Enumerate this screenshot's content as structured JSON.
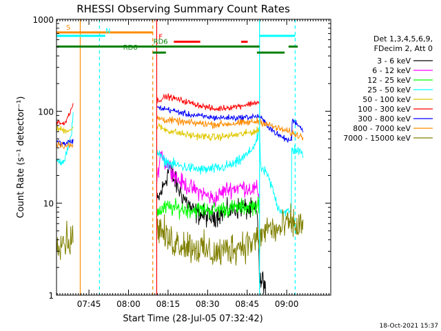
{
  "chart_data": {
    "type": "line",
    "title": "RHESSI Observing Summary Count Rates",
    "xlabel": "Start Time (28-Jul-05 07:32:42)",
    "ylabel": "Count Rate (s⁻¹ detector⁻¹)",
    "footer": "18-Oct-2021 15:37",
    "y_scale": "log",
    "ylim": [
      1,
      1000
    ],
    "xlim_min": [
      0,
      104
    ],
    "y_ticks": [
      {
        "value": 1,
        "label": "1"
      },
      {
        "value": 10,
        "label": "10"
      },
      {
        "value": 100,
        "label": "100"
      },
      {
        "value": 1000,
        "label": "1000"
      }
    ],
    "x_ticks": [
      {
        "value": 12.3,
        "label": "07:45"
      },
      {
        "value": 27.3,
        "label": "08:00"
      },
      {
        "value": 42.3,
        "label": "08:15"
      },
      {
        "value": 57.3,
        "label": "08:30"
      },
      {
        "value": 72.3,
        "label": "08:45"
      },
      {
        "value": 87.3,
        "label": "09:00"
      }
    ],
    "legend": {
      "placement": "right",
      "header": [
        "Det 1,3,4,5,6,9,",
        "FDecim 2, Att 0"
      ],
      "entries": [
        {
          "label": "3 - 6 keV",
          "color": "#000000"
        },
        {
          "label": "6 - 12 keV",
          "color": "#ff00ff"
        },
        {
          "label": "12 - 25 keV",
          "color": "#00ff00"
        },
        {
          "label": "25 - 50 keV",
          "color": "#00ffff"
        },
        {
          "label": "50 - 100 keV",
          "color": "#e0c800"
        },
        {
          "label": "100 - 300 keV",
          "color": "#ff0000"
        },
        {
          "label": "300 - 800 keV",
          "color": "#0000ff"
        },
        {
          "label": "800 - 7000 keV",
          "color": "#ff8c00"
        },
        {
          "label": "7000 - 15000 keV",
          "color": "#808000"
        }
      ]
    },
    "bars": [
      {
        "label": "S",
        "color": "#ff8c00",
        "y": 720,
        "segments": [
          [
            0,
            36.5
          ]
        ],
        "label_x": 4.5
      },
      {
        "label": "N",
        "color": "#00ffff",
        "y": 660,
        "segments": [
          [
            0,
            18.5
          ],
          [
            77,
            90.5
          ]
        ],
        "label_x": 19.5
      },
      {
        "label": "F",
        "color": "#ff0000",
        "y": 570,
        "segments": [
          [
            44.5,
            54.5
          ],
          [
            70,
            72.5
          ]
        ],
        "label_x": 39.5
      },
      {
        "label": "RD6",
        "color": "#008000",
        "y": 505,
        "segments": [
          [
            0,
            77
          ],
          [
            88,
            91.5
          ]
        ],
        "label_x": 39.5
      },
      {
        "label": "RD6",
        "color": "#008000",
        "y": 435,
        "segments": [
          [
            36.5,
            41.5
          ],
          [
            76,
            86.5
          ]
        ],
        "label_x": 28
      }
    ],
    "vlines": [
      {
        "x": 9.0,
        "color": "#ff8c00",
        "style": "solid"
      },
      {
        "x": 16.3,
        "color": "#00ffff",
        "style": "dashed"
      },
      {
        "x": 36.5,
        "color": "#ff8c00",
        "style": "dashed"
      },
      {
        "x": 38.0,
        "color": "#ff0000",
        "style": "solid"
      },
      {
        "x": 77.0,
        "color": "#00ffff",
        "style": "solid"
      },
      {
        "x": 90.5,
        "color": "#00ffff",
        "style": "dashed"
      }
    ],
    "segments": [
      [
        0,
        6.3
      ],
      [
        38,
        77
      ],
      [
        77,
        89.2
      ],
      [
        89.2,
        93.5
      ]
    ],
    "series": [
      {
        "name": "3 - 6 keV",
        "color": "#000000",
        "noise": 0.09,
        "points": [
          [
            38,
            10
          ],
          [
            40.5,
            15
          ],
          [
            43,
            25
          ],
          [
            44.5,
            18
          ],
          [
            47,
            13
          ],
          [
            52,
            8
          ],
          [
            58,
            7
          ],
          [
            64,
            8
          ],
          [
            70,
            9
          ],
          [
            76,
            8
          ],
          [
            76.8,
            3
          ],
          [
            77,
            1.3
          ],
          [
            78.5,
            1.5
          ],
          [
            79.5,
            1
          ]
        ]
      },
      {
        "name": "6 - 12 keV",
        "color": "#ff00ff",
        "noise": 0.07,
        "points": [
          [
            38,
            14
          ],
          [
            39.5,
            40
          ],
          [
            41,
            28
          ],
          [
            43,
            25
          ],
          [
            46,
            18
          ],
          [
            50,
            15
          ],
          [
            55,
            13
          ],
          [
            60,
            11
          ],
          [
            64,
            14
          ],
          [
            70,
            15
          ],
          [
            76,
            14
          ],
          [
            77,
            12
          ]
        ]
      },
      {
        "name": "12 - 25 keV",
        "color": "#00ff00",
        "noise": 0.07,
        "points": [
          [
            38,
            8
          ],
          [
            42,
            9
          ],
          [
            50,
            8.5
          ],
          [
            60,
            8.5
          ],
          [
            70,
            9
          ],
          [
            77,
            9.5
          ]
        ]
      },
      {
        "name": "25 - 50 keV",
        "color": "#00ffff",
        "noise": 0.045,
        "points": [
          [
            0,
            28
          ],
          [
            3,
            30
          ],
          [
            5.5,
            50
          ],
          [
            6.3,
            100
          ],
          [
            38,
            38
          ],
          [
            40,
            30
          ],
          [
            43,
            27
          ],
          [
            48,
            25
          ],
          [
            55,
            23
          ],
          [
            62,
            24
          ],
          [
            68,
            27
          ],
          [
            73,
            35
          ],
          [
            76,
            48
          ],
          [
            77,
            65
          ],
          [
            77.3,
            25
          ],
          [
            80,
            20
          ],
          [
            82,
            14
          ],
          [
            84,
            9
          ],
          [
            86,
            8
          ],
          [
            89,
            8
          ],
          [
            89.2,
            38
          ],
          [
            91,
            38
          ],
          [
            93.5,
            33
          ]
        ]
      },
      {
        "name": "50 - 100 keV",
        "color": "#e0c800",
        "noise": 0.03,
        "points": [
          [
            0,
            65
          ],
          [
            3,
            62
          ],
          [
            6.3,
            64
          ],
          [
            38,
            70
          ],
          [
            42,
            62
          ],
          [
            50,
            55
          ],
          [
            60,
            52
          ],
          [
            70,
            56
          ],
          [
            77,
            62
          ]
        ]
      },
      {
        "name": "100 - 300 keV",
        "color": "#ff0000",
        "noise": 0.025,
        "points": [
          [
            0,
            78
          ],
          [
            3,
            72
          ],
          [
            6.3,
            120
          ],
          [
            38,
            130
          ],
          [
            42,
            145
          ],
          [
            50,
            125
          ],
          [
            60,
            105
          ],
          [
            70,
            115
          ],
          [
            76,
            125
          ],
          [
            77,
            125
          ]
        ]
      },
      {
        "name": "300 - 800 keV",
        "color": "#0000ff",
        "noise": 0.025,
        "points": [
          [
            0,
            46
          ],
          [
            3,
            44
          ],
          [
            6.3,
            48
          ],
          [
            38,
            110
          ],
          [
            42,
            105
          ],
          [
            50,
            92
          ],
          [
            60,
            85
          ],
          [
            70,
            85
          ],
          [
            76,
            88
          ],
          [
            77,
            88
          ],
          [
            80,
            70
          ],
          [
            84,
            55
          ],
          [
            88,
            48
          ],
          [
            89.2,
            50
          ],
          [
            89.2,
            80
          ],
          [
            91,
            75
          ],
          [
            93.5,
            62
          ]
        ]
      },
      {
        "name": "800 - 7000 keV",
        "color": "#ff8c00",
        "noise": 0.03,
        "points": [
          [
            0,
            45
          ],
          [
            3,
            42
          ],
          [
            6.3,
            42
          ],
          [
            38,
            85
          ],
          [
            42,
            80
          ],
          [
            50,
            75
          ],
          [
            60,
            72
          ],
          [
            70,
            74
          ],
          [
            77,
            78
          ],
          [
            80,
            72
          ],
          [
            84,
            65
          ],
          [
            88,
            60
          ],
          [
            89.2,
            58
          ],
          [
            91,
            56
          ],
          [
            93.5,
            52
          ]
        ]
      },
      {
        "name": "7000 - 15000 keV",
        "color": "#808000",
        "noise": 0.14,
        "points": [
          [
            0,
            4
          ],
          [
            6.3,
            4
          ],
          [
            38,
            6
          ],
          [
            42,
            4
          ],
          [
            50,
            3.5
          ],
          [
            60,
            2.8
          ],
          [
            70,
            3.5
          ],
          [
            77,
            4
          ],
          [
            80,
            5.5
          ],
          [
            84,
            5
          ],
          [
            88,
            6
          ],
          [
            89.2,
            6
          ],
          [
            91,
            5.5
          ],
          [
            93.5,
            6
          ]
        ]
      }
    ]
  }
}
